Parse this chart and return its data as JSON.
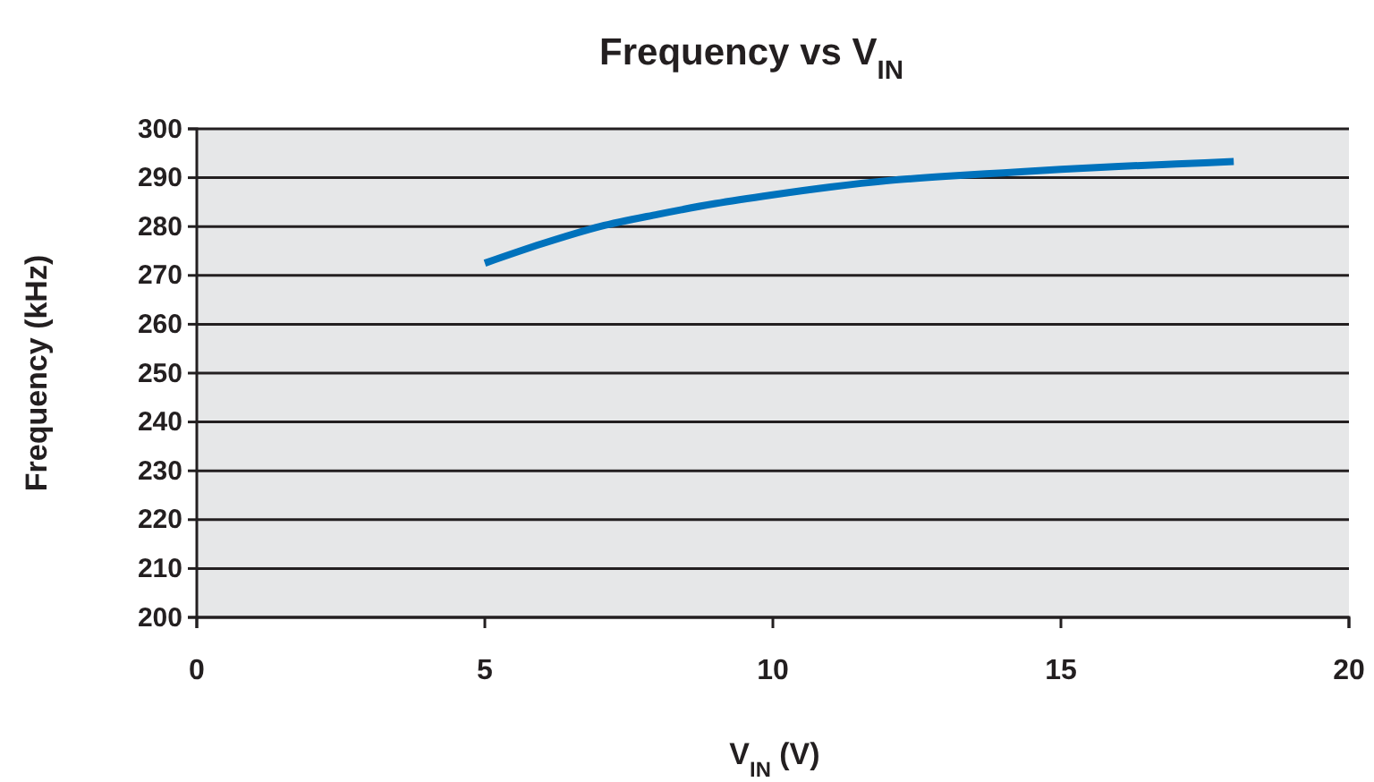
{
  "chart_data": {
    "type": "line",
    "title": "Frequency vs V$_{IN}$",
    "xlabel": "V$_{IN}$ (V)",
    "ylabel": "Frequency (kHz)",
    "x": [
      5,
      6,
      7,
      8,
      9,
      10,
      11,
      12,
      13,
      14,
      15,
      16,
      17,
      18
    ],
    "series": [
      {
        "color": "#0072bc",
        "values": [
          272.5,
          276.5,
          280,
          282.5,
          284.7,
          286.5,
          288.1,
          289.4,
          290.3,
          291,
          291.7,
          292.3,
          292.8,
          293.3
        ]
      }
    ],
    "xlim": [
      0,
      20
    ],
    "xticks": [
      0,
      5,
      10,
      15,
      20
    ],
    "ylim": [
      200,
      300
    ],
    "yticks": [
      200,
      210,
      220,
      230,
      240,
      250,
      260,
      270,
      280,
      290,
      300
    ],
    "grid": "y",
    "marker": "none",
    "line_style": "solid"
  }
}
